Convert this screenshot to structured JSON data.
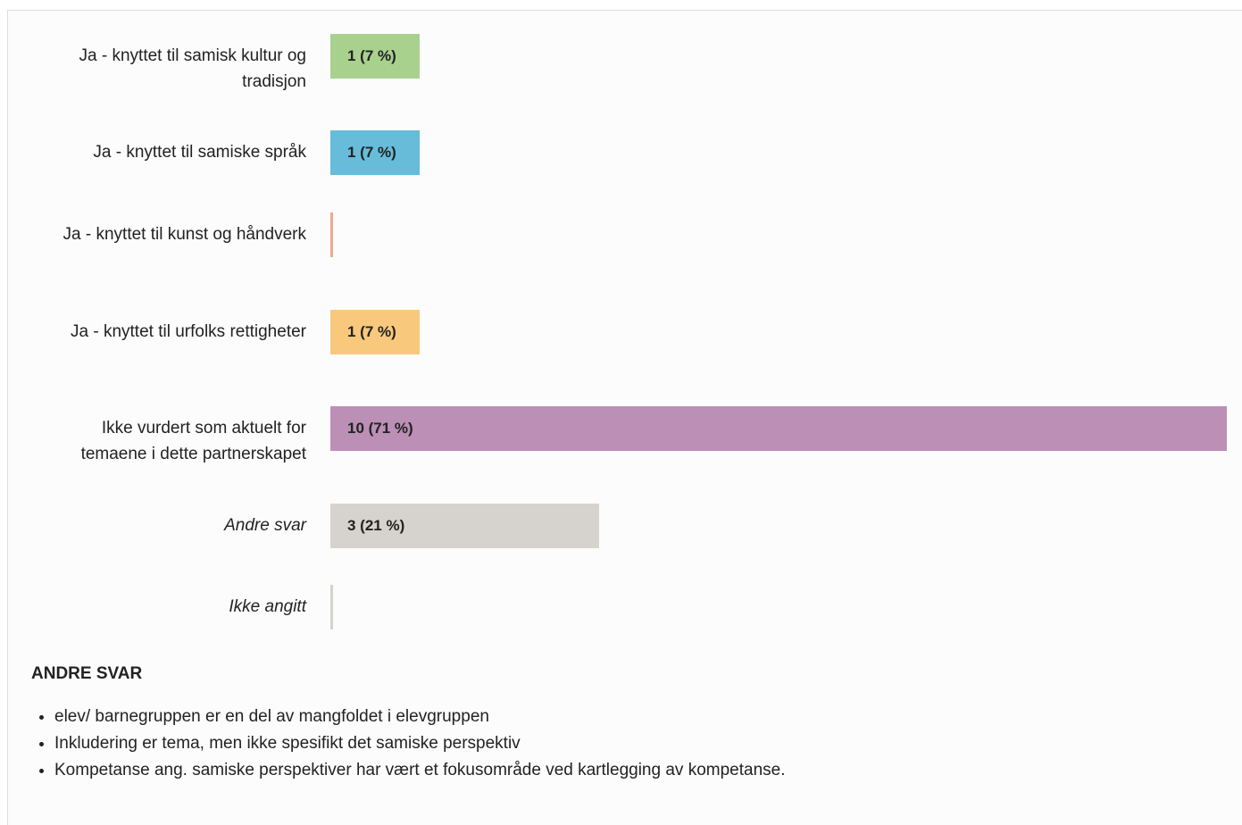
{
  "chart_data": {
    "type": "bar",
    "orientation": "horizontal",
    "categories": [
      "Ja - knyttet til samisk kultur og tradisjon",
      "Ja - knyttet til samiske språk",
      "Ja - knyttet til kunst og håndverk",
      "Ja - knyttet til urfolks rettigheter",
      "Ikke vurdert som aktuelt for temaene i dette partnerskapet",
      "Andre svar",
      "Ikke angitt"
    ],
    "values": [
      1,
      1,
      0,
      1,
      10,
      3,
      0
    ],
    "value_labels": [
      "1 (7 %)",
      "1 (7 %)",
      null,
      "1 (7 %)",
      "10 (71 %)",
      "3 (21 %)",
      null
    ],
    "colors": [
      "#a9d18e",
      "#67bcd9",
      "#efa98c",
      "#f8c97d",
      "#bb8fb6",
      "#d6d3ce",
      "#d6d3ce"
    ],
    "italic": [
      false,
      false,
      false,
      false,
      false,
      true,
      true
    ]
  },
  "other_answers": {
    "title": "ANDRE SVAR",
    "items": [
      "elev/ barnegruppen er en del av mangfoldet i elevgruppen",
      "Inkludering er tema, men ikke spesifikt det samiske perspektiv",
      "Kompetanse ang. samiske perspektiver har vært et fokusområde ved kartlegging av kompetanse."
    ]
  }
}
